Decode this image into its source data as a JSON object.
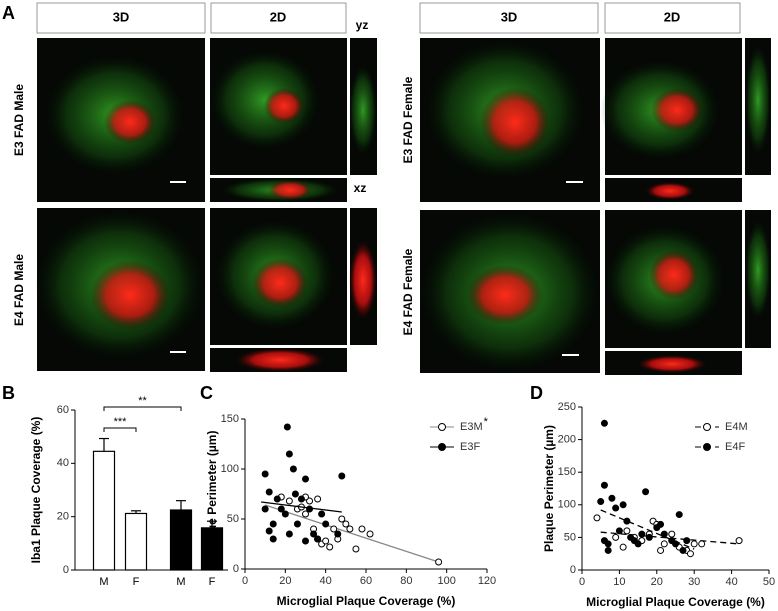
{
  "panel_a": {
    "letter": "A",
    "headers": [
      "3D",
      "2D",
      "3D",
      "2D"
    ],
    "yz": "yz",
    "xz": "xz",
    "row_labels": [
      "E3 FAD Male",
      "E4 FAD Male",
      "E3 FAD Female",
      "E4 FAD Female"
    ]
  },
  "chart_data": [
    {
      "type": "bar",
      "letter": "B",
      "y_label": "Iba1 Plaque Coverage (%)",
      "categories": [
        "M",
        "F",
        "M",
        "F"
      ],
      "values": [
        44.5,
        21.2,
        22.5,
        15.8
      ],
      "errors": [
        4.8,
        1.0,
        3.5,
        2.5
      ],
      "colors": [
        "#ffffff",
        "#ffffff",
        "#000000",
        "#000000"
      ],
      "ylim": [
        0,
        60
      ],
      "yticks": [
        0,
        20,
        40,
        60
      ],
      "annotations": [
        "***",
        "**"
      ]
    },
    {
      "type": "scatter",
      "letter": "C",
      "x_label": "Microglial Plaque Coverage (%)",
      "y_label": "Plaque Perimeter (µm)",
      "xlim": [
        0,
        120
      ],
      "xticks": [
        0,
        20,
        40,
        60,
        80,
        100,
        120
      ],
      "ylim": [
        0,
        150
      ],
      "yticks": [
        0,
        50,
        100,
        150
      ],
      "legend_note": "*",
      "series": [
        {
          "name": "E3M",
          "fill": "#ffffff",
          "color": "#888888",
          "line_style": "solid",
          "x": [
            18,
            22,
            26,
            28,
            30,
            32,
            34,
            36,
            38,
            40,
            44,
            46,
            48,
            50,
            52,
            55,
            58,
            62,
            96,
            42,
            30,
            36
          ],
          "y": [
            72,
            68,
            60,
            62,
            55,
            68,
            40,
            30,
            25,
            28,
            40,
            30,
            50,
            45,
            40,
            20,
            40,
            35,
            7,
            22,
            72,
            70
          ],
          "fit": {
            "x": [
              10,
              96
            ],
            "y": [
              64,
              7
            ]
          }
        },
        {
          "name": "E3F",
          "fill": "#000000",
          "color": "#000000",
          "line_style": "solid",
          "x": [
            10,
            10,
            12,
            14,
            16,
            18,
            20,
            21,
            22,
            24,
            25,
            26,
            28,
            30,
            32,
            34,
            38,
            40,
            46,
            48,
            22,
            14,
            12,
            30,
            36
          ],
          "y": [
            60,
            95,
            77,
            45,
            70,
            60,
            55,
            142,
            115,
            100,
            75,
            45,
            70,
            90,
            60,
            35,
            55,
            45,
            35,
            93,
            35,
            30,
            38,
            28,
            30
          ],
          "fit": {
            "x": [
              8,
              48
            ],
            "y": [
              67,
              57
            ]
          }
        }
      ]
    },
    {
      "type": "scatter",
      "letter": "D",
      "x_label": "Microglial Plaque Coverage (%)",
      "y_label": "Plaque Perimeter (µm)",
      "xlim": [
        0,
        50
      ],
      "xticks": [
        0,
        10,
        20,
        30,
        40,
        50
      ],
      "ylim": [
        0,
        250
      ],
      "yticks": [
        0,
        50,
        100,
        150,
        200,
        250
      ],
      "series": [
        {
          "name": "E4M",
          "fill": "#ffffff",
          "color": "#000000",
          "line_style": "dashed",
          "x": [
            4,
            9,
            11,
            12,
            14,
            16,
            18,
            19,
            20,
            22,
            24,
            26,
            28,
            30,
            32,
            42,
            29,
            21
          ],
          "y": [
            80,
            50,
            35,
            60,
            50,
            45,
            55,
            75,
            70,
            40,
            55,
            35,
            30,
            40,
            40,
            45,
            25,
            30
          ],
          "fit": {
            "x": [
              5,
              42
            ],
            "y": [
              58,
              40
            ]
          }
        },
        {
          "name": "E4F",
          "fill": "#000000",
          "color": "#000000",
          "line_style": "dashed",
          "x": [
            6,
            6,
            5,
            6,
            7,
            8,
            9,
            10,
            11,
            12,
            13,
            14,
            15,
            16,
            17,
            18,
            20,
            21,
            22,
            24,
            25,
            26,
            27,
            28,
            7
          ],
          "y": [
            225,
            130,
            105,
            45,
            40,
            110,
            95,
            60,
            100,
            75,
            50,
            45,
            40,
            55,
            120,
            50,
            65,
            70,
            55,
            45,
            40,
            85,
            30,
            45,
            30
          ],
          "fit": {
            "x": [
              5,
              30
            ],
            "y": [
              92,
              32
            ]
          }
        }
      ]
    }
  ]
}
